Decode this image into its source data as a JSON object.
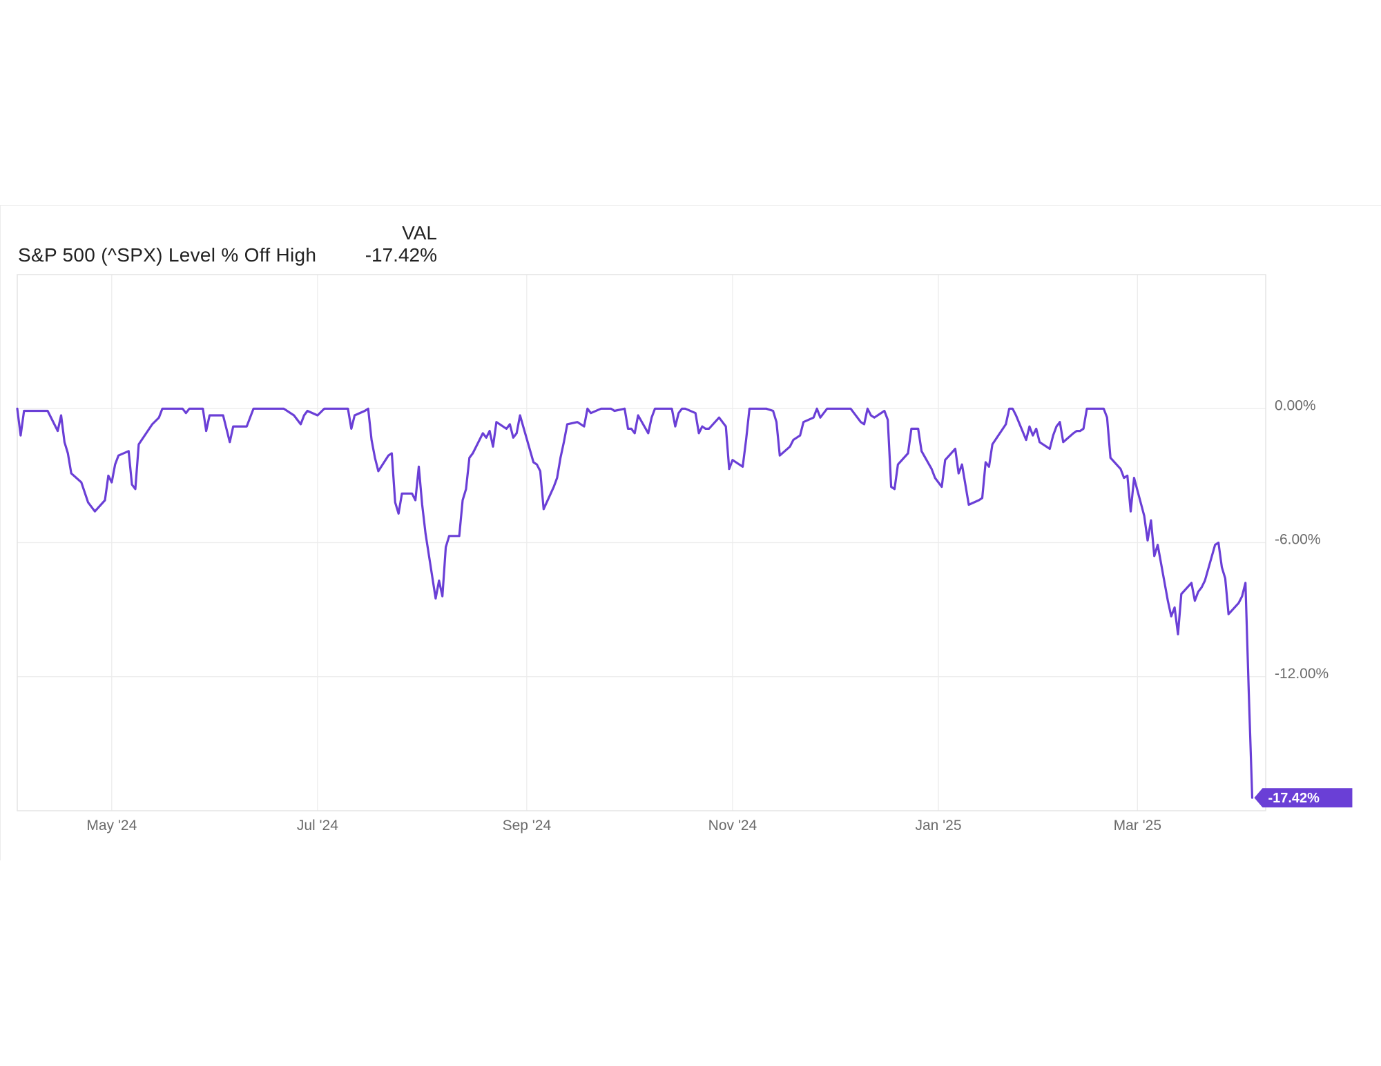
{
  "legend": {
    "header": "VAL",
    "series_name": "S&P 500 (^SPX) Level % Off High",
    "series_value": "-17.42%"
  },
  "colors": {
    "line": "#6a3fd6",
    "grid": "#ececec",
    "axis_text": "#6b6b6b"
  },
  "chart_data": {
    "type": "line",
    "title": "",
    "xlabel": "",
    "ylabel": "",
    "x_ticks": [
      {
        "label": "May '24",
        "date": "2024-05-01"
      },
      {
        "label": "Jul '24",
        "date": "2024-07-01"
      },
      {
        "label": "Sep '24",
        "date": "2024-09-01"
      },
      {
        "label": "Nov '24",
        "date": "2024-11-01"
      },
      {
        "label": "Jan '25",
        "date": "2025-01-01"
      },
      {
        "label": "Mar '25",
        "date": "2025-03-01"
      }
    ],
    "y_ticks": [
      {
        "label": "0.00%",
        "value": 0
      },
      {
        "label": "-6.00%",
        "value": -6
      },
      {
        "label": "-12.00%",
        "value": -12
      }
    ],
    "xlim": [
      "2024-04-03",
      "2025-04-08"
    ],
    "ylim": [
      -18,
      6
    ],
    "grid": true,
    "series": [
      {
        "name": "S&P 500 (^SPX) Level % Off High",
        "last_value_label": "-17.42%",
        "points": [
          [
            "2024-04-03",
            0.0
          ],
          [
            "2024-04-04",
            -1.2
          ],
          [
            "2024-04-05",
            -0.1
          ],
          [
            "2024-04-08",
            -0.1
          ],
          [
            "2024-04-10",
            -0.1
          ],
          [
            "2024-04-12",
            -0.1
          ],
          [
            "2024-04-15",
            -1.0
          ],
          [
            "2024-04-16",
            -0.3
          ],
          [
            "2024-04-17",
            -1.5
          ],
          [
            "2024-04-18",
            -2.0
          ],
          [
            "2024-04-19",
            -2.9
          ],
          [
            "2024-04-22",
            -3.3
          ],
          [
            "2024-04-24",
            -4.2
          ],
          [
            "2024-04-26",
            -4.6
          ],
          [
            "2024-04-29",
            -4.1
          ],
          [
            "2024-04-30",
            -3.0
          ],
          [
            "2024-05-01",
            -3.3
          ],
          [
            "2024-05-02",
            -2.5
          ],
          [
            "2024-05-03",
            -2.1
          ],
          [
            "2024-05-06",
            -1.9
          ],
          [
            "2024-05-07",
            -3.4
          ],
          [
            "2024-05-08",
            -3.6
          ],
          [
            "2024-05-09",
            -1.6
          ],
          [
            "2024-05-13",
            -0.7
          ],
          [
            "2024-05-15",
            -0.4
          ],
          [
            "2024-05-16",
            0.0
          ],
          [
            "2024-05-20",
            0.0
          ],
          [
            "2024-05-22",
            0.0
          ],
          [
            "2024-05-23",
            -0.2
          ],
          [
            "2024-05-24",
            0.0
          ],
          [
            "2024-05-28",
            0.0
          ],
          [
            "2024-05-29",
            -1.0
          ],
          [
            "2024-05-30",
            -0.3
          ],
          [
            "2024-06-03",
            -0.3
          ],
          [
            "2024-06-05",
            -1.5
          ],
          [
            "2024-06-06",
            -0.8
          ],
          [
            "2024-06-10",
            -0.8
          ],
          [
            "2024-06-12",
            0.0
          ],
          [
            "2024-06-14",
            0.0
          ],
          [
            "2024-06-18",
            0.0
          ],
          [
            "2024-06-21",
            0.0
          ],
          [
            "2024-06-24",
            -0.3
          ],
          [
            "2024-06-26",
            -0.7
          ],
          [
            "2024-06-27",
            -0.3
          ],
          [
            "2024-06-28",
            -0.1
          ],
          [
            "2024-07-01",
            -0.3
          ],
          [
            "2024-07-03",
            0.0
          ],
          [
            "2024-07-08",
            0.0
          ],
          [
            "2024-07-10",
            0.0
          ],
          [
            "2024-07-11",
            -0.9
          ],
          [
            "2024-07-12",
            -0.3
          ],
          [
            "2024-07-15",
            -0.1
          ],
          [
            "2024-07-16",
            0.0
          ],
          [
            "2024-07-17",
            -1.4
          ],
          [
            "2024-07-18",
            -2.2
          ],
          [
            "2024-07-19",
            -2.8
          ],
          [
            "2024-07-22",
            -2.1
          ],
          [
            "2024-07-23",
            -2.0
          ],
          [
            "2024-07-24",
            -4.2
          ],
          [
            "2024-07-25",
            -4.7
          ],
          [
            "2024-07-26",
            -3.8
          ],
          [
            "2024-07-29",
            -3.8
          ],
          [
            "2024-07-30",
            -4.1
          ],
          [
            "2024-07-31",
            -2.6
          ],
          [
            "2024-08-01",
            -4.3
          ],
          [
            "2024-08-02",
            -5.6
          ],
          [
            "2024-08-05",
            -8.5
          ],
          [
            "2024-08-06",
            -7.7
          ],
          [
            "2024-08-07",
            -8.4
          ],
          [
            "2024-08-08",
            -6.2
          ],
          [
            "2024-08-09",
            -5.7
          ],
          [
            "2024-08-12",
            -5.7
          ],
          [
            "2024-08-13",
            -4.1
          ],
          [
            "2024-08-14",
            -3.6
          ],
          [
            "2024-08-15",
            -2.2
          ],
          [
            "2024-08-16",
            -2.0
          ],
          [
            "2024-08-19",
            -1.1
          ],
          [
            "2024-08-20",
            -1.3
          ],
          [
            "2024-08-21",
            -1.0
          ],
          [
            "2024-08-22",
            -1.7
          ],
          [
            "2024-08-23",
            -0.6
          ],
          [
            "2024-08-26",
            -0.9
          ],
          [
            "2024-08-27",
            -0.7
          ],
          [
            "2024-08-28",
            -1.3
          ],
          [
            "2024-08-29",
            -1.1
          ],
          [
            "2024-08-30",
            -0.3
          ],
          [
            "2024-09-03",
            -2.4
          ],
          [
            "2024-09-04",
            -2.5
          ],
          [
            "2024-09-05",
            -2.8
          ],
          [
            "2024-09-06",
            -4.5
          ],
          [
            "2024-09-09",
            -3.5
          ],
          [
            "2024-09-10",
            -3.1
          ],
          [
            "2024-09-11",
            -2.2
          ],
          [
            "2024-09-12",
            -1.5
          ],
          [
            "2024-09-13",
            -0.7
          ],
          [
            "2024-09-16",
            -0.6
          ],
          [
            "2024-09-18",
            -0.8
          ],
          [
            "2024-09-19",
            0.0
          ],
          [
            "2024-09-20",
            -0.2
          ],
          [
            "2024-09-23",
            0.0
          ],
          [
            "2024-09-26",
            0.0
          ],
          [
            "2024-09-27",
            -0.1
          ],
          [
            "2024-09-30",
            0.0
          ],
          [
            "2024-10-01",
            -0.9
          ],
          [
            "2024-10-02",
            -0.9
          ],
          [
            "2024-10-03",
            -1.1
          ],
          [
            "2024-10-04",
            -0.3
          ],
          [
            "2024-10-07",
            -1.1
          ],
          [
            "2024-10-08",
            -0.4
          ],
          [
            "2024-10-09",
            0.0
          ],
          [
            "2024-10-11",
            0.0
          ],
          [
            "2024-10-14",
            0.0
          ],
          [
            "2024-10-15",
            -0.8
          ],
          [
            "2024-10-16",
            -0.2
          ],
          [
            "2024-10-17",
            0.0
          ],
          [
            "2024-10-18",
            0.0
          ],
          [
            "2024-10-21",
            -0.2
          ],
          [
            "2024-10-22",
            -1.1
          ],
          [
            "2024-10-23",
            -0.8
          ],
          [
            "2024-10-24",
            -0.9
          ],
          [
            "2024-10-25",
            -0.9
          ],
          [
            "2024-10-28",
            -0.4
          ],
          [
            "2024-10-30",
            -0.8
          ],
          [
            "2024-10-31",
            -2.7
          ],
          [
            "2024-11-01",
            -2.3
          ],
          [
            "2024-11-04",
            -2.6
          ],
          [
            "2024-11-05",
            -1.4
          ],
          [
            "2024-11-06",
            0.0
          ],
          [
            "2024-11-08",
            0.0
          ],
          [
            "2024-11-11",
            0.0
          ],
          [
            "2024-11-13",
            -0.1
          ],
          [
            "2024-11-14",
            -0.6
          ],
          [
            "2024-11-15",
            -2.1
          ],
          [
            "2024-11-18",
            -1.7
          ],
          [
            "2024-11-19",
            -1.4
          ],
          [
            "2024-11-20",
            -1.3
          ],
          [
            "2024-11-21",
            -1.2
          ],
          [
            "2024-11-22",
            -0.6
          ],
          [
            "2024-11-25",
            -0.4
          ],
          [
            "2024-11-26",
            0.0
          ],
          [
            "2024-11-27",
            -0.4
          ],
          [
            "2024-11-29",
            0.0
          ],
          [
            "2024-12-02",
            0.0
          ],
          [
            "2024-12-04",
            0.0
          ],
          [
            "2024-12-06",
            0.0
          ],
          [
            "2024-12-09",
            -0.6
          ],
          [
            "2024-12-10",
            -0.7
          ],
          [
            "2024-12-11",
            0.0
          ],
          [
            "2024-12-12",
            -0.3
          ],
          [
            "2024-12-13",
            -0.4
          ],
          [
            "2024-12-16",
            -0.1
          ],
          [
            "2024-12-17",
            -0.5
          ],
          [
            "2024-12-18",
            -3.5
          ],
          [
            "2024-12-19",
            -3.6
          ],
          [
            "2024-12-20",
            -2.5
          ],
          [
            "2024-12-23",
            -2.0
          ],
          [
            "2024-12-24",
            -0.9
          ],
          [
            "2024-12-26",
            -0.9
          ],
          [
            "2024-12-27",
            -1.9
          ],
          [
            "2024-12-30",
            -2.7
          ],
          [
            "2024-12-31",
            -3.1
          ],
          [
            "2025-01-02",
            -3.5
          ],
          [
            "2025-01-03",
            -2.3
          ],
          [
            "2025-01-06",
            -1.8
          ],
          [
            "2025-01-07",
            -2.9
          ],
          [
            "2025-01-08",
            -2.5
          ],
          [
            "2025-01-10",
            -4.3
          ],
          [
            "2025-01-13",
            -4.1
          ],
          [
            "2025-01-14",
            -4.0
          ],
          [
            "2025-01-15",
            -2.4
          ],
          [
            "2025-01-16",
            -2.6
          ],
          [
            "2025-01-17",
            -1.6
          ],
          [
            "2025-01-21",
            -0.7
          ],
          [
            "2025-01-22",
            0.0
          ],
          [
            "2025-01-23",
            0.0
          ],
          [
            "2025-01-24",
            -0.3
          ],
          [
            "2025-01-27",
            -1.4
          ],
          [
            "2025-01-28",
            -0.8
          ],
          [
            "2025-01-29",
            -1.2
          ],
          [
            "2025-01-30",
            -0.9
          ],
          [
            "2025-01-31",
            -1.5
          ],
          [
            "2025-02-03",
            -1.8
          ],
          [
            "2025-02-04",
            -1.2
          ],
          [
            "2025-02-05",
            -0.8
          ],
          [
            "2025-02-06",
            -0.6
          ],
          [
            "2025-02-07",
            -1.5
          ],
          [
            "2025-02-10",
            -1.1
          ],
          [
            "2025-02-11",
            -1.0
          ],
          [
            "2025-02-12",
            -1.0
          ],
          [
            "2025-02-13",
            -0.9
          ],
          [
            "2025-02-14",
            0.0
          ],
          [
            "2025-02-18",
            0.0
          ],
          [
            "2025-02-19",
            0.0
          ],
          [
            "2025-02-20",
            -0.4
          ],
          [
            "2025-02-21",
            -2.2
          ],
          [
            "2025-02-24",
            -2.7
          ],
          [
            "2025-02-25",
            -3.1
          ],
          [
            "2025-02-26",
            -3.0
          ],
          [
            "2025-02-27",
            -4.6
          ],
          [
            "2025-02-28",
            -3.1
          ],
          [
            "2025-03-03",
            -4.8
          ],
          [
            "2025-03-04",
            -5.9
          ],
          [
            "2025-03-05",
            -5.0
          ],
          [
            "2025-03-06",
            -6.6
          ],
          [
            "2025-03-07",
            -6.1
          ],
          [
            "2025-03-10",
            -8.6
          ],
          [
            "2025-03-11",
            -9.3
          ],
          [
            "2025-03-12",
            -8.9
          ],
          [
            "2025-03-13",
            -10.1
          ],
          [
            "2025-03-14",
            -8.3
          ],
          [
            "2025-03-17",
            -7.8
          ],
          [
            "2025-03-18",
            -8.6
          ],
          [
            "2025-03-19",
            -8.2
          ],
          [
            "2025-03-20",
            -8.0
          ],
          [
            "2025-03-21",
            -7.7
          ],
          [
            "2025-03-24",
            -6.1
          ],
          [
            "2025-03-25",
            -6.0
          ],
          [
            "2025-03-26",
            -7.1
          ],
          [
            "2025-03-27",
            -7.6
          ],
          [
            "2025-03-28",
            -9.2
          ],
          [
            "2025-03-31",
            -8.7
          ],
          [
            "2025-04-01",
            -8.4
          ],
          [
            "2025-04-02",
            -7.8
          ],
          [
            "2025-04-03",
            -12.8
          ],
          [
            "2025-04-04",
            -17.42
          ]
        ]
      }
    ]
  }
}
